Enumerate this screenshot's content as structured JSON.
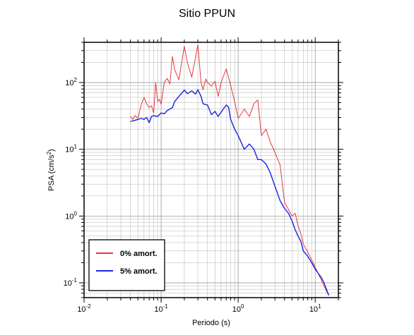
{
  "chart_data": {
    "type": "line",
    "title": "Sitio PPUN",
    "xlabel": "Periodo (s)",
    "ylabel_main": "PSA (cm/s",
    "ylabel_sup": "2",
    "ylabel_end": ")",
    "xscale": "log",
    "yscale": "log",
    "xlim": [
      0.01,
      20
    ],
    "ylim": [
      0.06,
      400
    ],
    "grid": true,
    "legend_position": "bottom-left",
    "x_ticks": [
      {
        "value": 0.01,
        "base": "10",
        "exp": "-2"
      },
      {
        "value": 0.1,
        "base": "10",
        "exp": "-1"
      },
      {
        "value": 1,
        "base": "10",
        "exp": "0"
      },
      {
        "value": 10,
        "base": "10",
        "exp": "1"
      }
    ],
    "y_ticks": [
      {
        "value": 0.1,
        "base": "10",
        "exp": "-1"
      },
      {
        "value": 1,
        "base": "10",
        "exp": "0"
      },
      {
        "value": 10,
        "base": "10",
        "exp": "1"
      },
      {
        "value": 100,
        "base": "10",
        "exp": "2"
      }
    ],
    "series": [
      {
        "name": "0% amort.",
        "color": "#e8383d",
        "points": [
          [
            0.04,
            31
          ],
          [
            0.043,
            28
          ],
          [
            0.046,
            32
          ],
          [
            0.05,
            29
          ],
          [
            0.055,
            46
          ],
          [
            0.06,
            60
          ],
          [
            0.065,
            48
          ],
          [
            0.07,
            42
          ],
          [
            0.075,
            45
          ],
          [
            0.08,
            35
          ],
          [
            0.085,
            100
          ],
          [
            0.09,
            52
          ],
          [
            0.095,
            56
          ],
          [
            0.1,
            47
          ],
          [
            0.11,
            102
          ],
          [
            0.12,
            115
          ],
          [
            0.13,
            95
          ],
          [
            0.14,
            245
          ],
          [
            0.15,
            155
          ],
          [
            0.17,
            110
          ],
          [
            0.2,
            350
          ],
          [
            0.22,
            195
          ],
          [
            0.25,
            120
          ],
          [
            0.3,
            365
          ],
          [
            0.33,
            100
          ],
          [
            0.35,
            78
          ],
          [
            0.38,
            113
          ],
          [
            0.4,
            100
          ],
          [
            0.45,
            88
          ],
          [
            0.5,
            105
          ],
          [
            0.55,
            62
          ],
          [
            0.6,
            100
          ],
          [
            0.7,
            160
          ],
          [
            0.8,
            90
          ],
          [
            0.9,
            52
          ],
          [
            1.0,
            29
          ],
          [
            1.1,
            34
          ],
          [
            1.2,
            40
          ],
          [
            1.4,
            31
          ],
          [
            1.6,
            48
          ],
          [
            1.8,
            55
          ],
          [
            2.0,
            16
          ],
          [
            2.3,
            20
          ],
          [
            2.6,
            13
          ],
          [
            3.0,
            9
          ],
          [
            3.5,
            5.8
          ],
          [
            4.0,
            1.6
          ],
          [
            4.5,
            1.25
          ],
          [
            5.0,
            1.0
          ],
          [
            5.5,
            1.1
          ],
          [
            6.0,
            0.7
          ],
          [
            6.5,
            0.55
          ],
          [
            7.0,
            0.38
          ],
          [
            8.0,
            0.29
          ],
          [
            9.0,
            0.22
          ],
          [
            10.0,
            0.17
          ],
          [
            12.0,
            0.11
          ],
          [
            13.0,
            0.09
          ],
          [
            14.0,
            0.075
          ],
          [
            15.0,
            0.065
          ]
        ]
      },
      {
        "name": "5% amort.",
        "color": "#1a22e0",
        "points": [
          [
            0.04,
            26
          ],
          [
            0.045,
            27
          ],
          [
            0.05,
            28
          ],
          [
            0.055,
            29
          ],
          [
            0.06,
            28
          ],
          [
            0.065,
            30
          ],
          [
            0.07,
            25
          ],
          [
            0.075,
            31
          ],
          [
            0.08,
            32
          ],
          [
            0.09,
            31
          ],
          [
            0.1,
            35
          ],
          [
            0.11,
            34
          ],
          [
            0.12,
            38
          ],
          [
            0.13,
            40
          ],
          [
            0.14,
            42
          ],
          [
            0.15,
            52
          ],
          [
            0.17,
            62
          ],
          [
            0.2,
            77
          ],
          [
            0.22,
            68
          ],
          [
            0.25,
            75
          ],
          [
            0.28,
            67
          ],
          [
            0.3,
            78
          ],
          [
            0.33,
            62
          ],
          [
            0.35,
            48
          ],
          [
            0.4,
            46
          ],
          [
            0.45,
            33
          ],
          [
            0.5,
            37
          ],
          [
            0.55,
            31
          ],
          [
            0.6,
            36
          ],
          [
            0.7,
            46
          ],
          [
            0.75,
            43
          ],
          [
            0.8,
            28
          ],
          [
            0.9,
            20
          ],
          [
            1.0,
            16
          ],
          [
            1.2,
            10
          ],
          [
            1.4,
            12
          ],
          [
            1.6,
            10
          ],
          [
            1.8,
            7
          ],
          [
            2.0,
            7
          ],
          [
            2.3,
            6
          ],
          [
            2.6,
            4.5
          ],
          [
            3.0,
            2.8
          ],
          [
            3.5,
            1.7
          ],
          [
            4.0,
            1.3
          ],
          [
            4.5,
            1.1
          ],
          [
            5.0,
            0.85
          ],
          [
            5.5,
            0.62
          ],
          [
            6.0,
            0.5
          ],
          [
            6.5,
            0.42
          ],
          [
            7.0,
            0.3
          ],
          [
            8.0,
            0.25
          ],
          [
            9.0,
            0.2
          ],
          [
            10.0,
            0.16
          ],
          [
            12.0,
            0.12
          ],
          [
            13.0,
            0.1
          ],
          [
            14.0,
            0.08
          ],
          [
            15.0,
            0.065
          ]
        ]
      }
    ]
  }
}
